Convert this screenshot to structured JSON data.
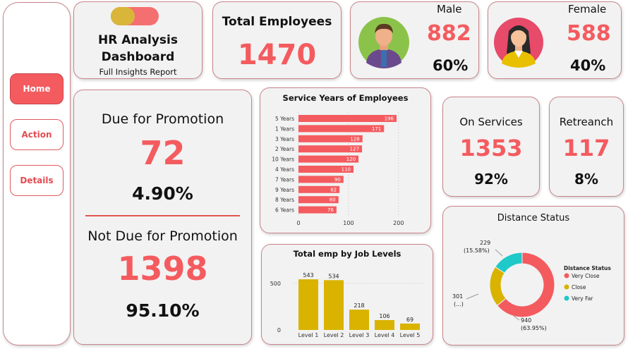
{
  "nav": {
    "home": "Home",
    "action": "Action",
    "details": "Details"
  },
  "title_card": {
    "title": "HR Analysis Dashboard",
    "subtitle": "Full Insights Report"
  },
  "total": {
    "label": "Total Employees",
    "value": "1470"
  },
  "male": {
    "label": "Male",
    "value": "882",
    "pct": "60%"
  },
  "female": {
    "label": "Female",
    "value": "588",
    "pct": "40%"
  },
  "promotion": {
    "due_label": "Due for Promotion",
    "due_value": "72",
    "due_pct": "4.90%",
    "not_due_label": "Not Due for Promotion",
    "not_due_value": "1398",
    "not_due_pct": "95.10%"
  },
  "on_services": {
    "label": "On Services",
    "value": "1353",
    "pct": "92%"
  },
  "retreanch": {
    "label": "Retreanch",
    "value": "117",
    "pct": "8%"
  },
  "colors": {
    "accent": "#f45b5f",
    "gold": "#d9b300",
    "teal": "#1fc9c9"
  },
  "chart_data": [
    {
      "type": "bar",
      "title": "Service Years of Employees",
      "orientation": "horizontal",
      "categories": [
        "5 Years",
        "1 Years",
        "3 Years",
        "2 Years",
        "10 Years",
        "4 Years",
        "7 Years",
        "9 Years",
        "8 Years",
        "6 Years"
      ],
      "values": [
        196,
        171,
        128,
        127,
        120,
        110,
        90,
        82,
        80,
        76
      ],
      "xlim": [
        0,
        220
      ],
      "xticks": [
        "0",
        "100",
        "200"
      ],
      "grid": true
    },
    {
      "type": "bar",
      "title": "Total emp by Job Levels",
      "categories": [
        "Level 1",
        "Level 2",
        "Level 3",
        "Level 4",
        "Level 5"
      ],
      "values": [
        543,
        534,
        218,
        106,
        69
      ],
      "yticks": [
        "0",
        "500"
      ],
      "ylim": [
        0,
        650
      ]
    },
    {
      "type": "pie",
      "title": "Distance Status",
      "legend_title": "Distance Status",
      "legend_position": "right",
      "slices": [
        {
          "name": "Very Close",
          "value": 940,
          "label": "940",
          "pct_label": "(63.95%)",
          "color": "#f45b5f"
        },
        {
          "name": "Close",
          "value": 301,
          "label": "301",
          "pct_label": "(...)",
          "color": "#d9b300"
        },
        {
          "name": "Very Far",
          "value": 229,
          "label": "229",
          "pct_label": "(15.58%)",
          "color": "#1fc9c9"
        }
      ]
    }
  ]
}
